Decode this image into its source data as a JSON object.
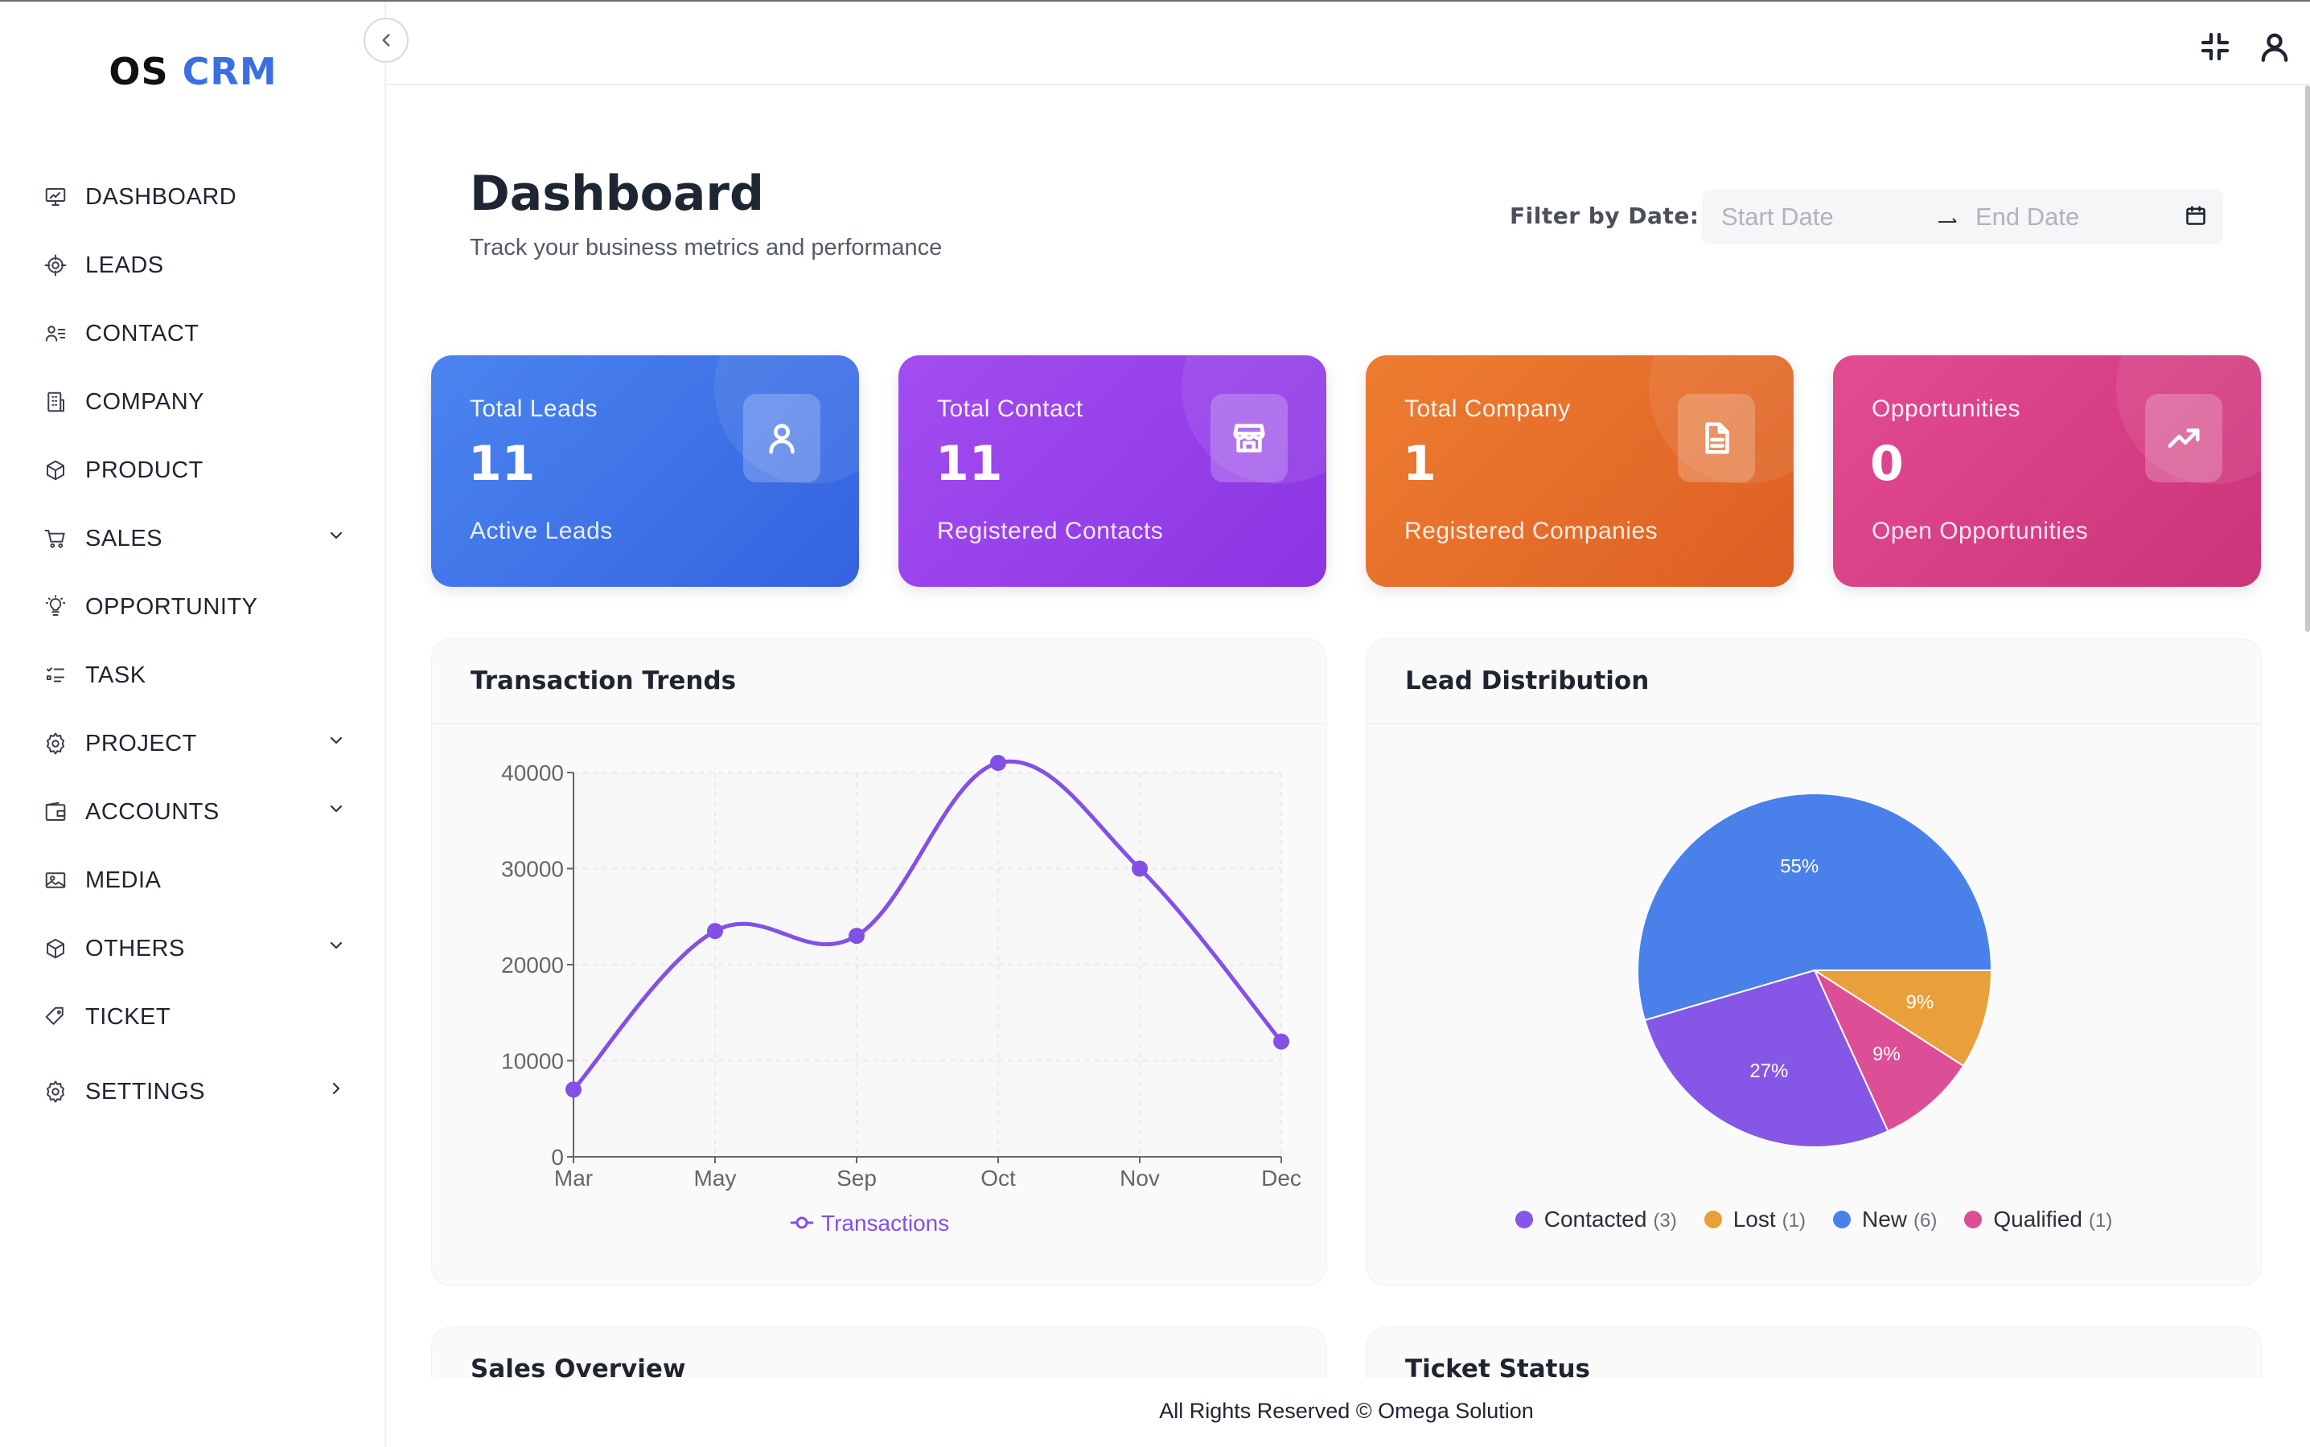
{
  "app": {
    "logo_prefix": "OS",
    "logo_suffix": "CRM"
  },
  "sidebar": {
    "items": [
      {
        "label": "DASHBOARD",
        "icon": "presentation-chart-icon",
        "has_submenu": false
      },
      {
        "label": "LEADS",
        "icon": "target-icon",
        "has_submenu": false
      },
      {
        "label": "CONTACT",
        "icon": "contact-list-icon",
        "has_submenu": false
      },
      {
        "label": "COMPANY",
        "icon": "building-icon",
        "has_submenu": false
      },
      {
        "label": "PRODUCT",
        "icon": "box-icon",
        "has_submenu": false
      },
      {
        "label": "SALES",
        "icon": "cart-icon",
        "has_submenu": true,
        "chevron": "down"
      },
      {
        "label": "OPPORTUNITY",
        "icon": "lightbulb-icon",
        "has_submenu": false
      },
      {
        "label": "TASK",
        "icon": "checklist-icon",
        "has_submenu": false
      },
      {
        "label": "PROJECT",
        "icon": "gear-icon",
        "has_submenu": true,
        "chevron": "down"
      },
      {
        "label": "ACCOUNTS",
        "icon": "wallet-icon",
        "has_submenu": true,
        "chevron": "down"
      },
      {
        "label": "MEDIA",
        "icon": "image-icon",
        "has_submenu": false
      },
      {
        "label": "OTHERS",
        "icon": "box-icon",
        "has_submenu": true,
        "chevron": "down"
      },
      {
        "label": "TICKET",
        "icon": "tag-icon",
        "has_submenu": false
      },
      {
        "label": "SETTINGS",
        "icon": "gear-icon",
        "has_submenu": true,
        "chevron": "right"
      }
    ]
  },
  "header": {
    "title": "Dashboard",
    "subtitle": "Track your business metrics and performance",
    "filter_label": "Filter by Date:",
    "start_placeholder": "Start Date",
    "end_placeholder": "End Date"
  },
  "stats": [
    {
      "title": "Total Leads",
      "value": "11",
      "subtitle": "Active Leads",
      "icon": "user-icon",
      "color": "#3f73e8"
    },
    {
      "title": "Total Contact",
      "value": "11",
      "subtitle": "Registered Contacts",
      "icon": "store-icon",
      "color": "#9641ea"
    },
    {
      "title": "Total Company",
      "value": "1",
      "subtitle": "Registered Companies",
      "icon": "document-icon",
      "color": "#e66c2a"
    },
    {
      "title": "Opportunities",
      "value": "0",
      "subtitle": "Open Opportunities",
      "icon": "trend-up-icon",
      "color": "#d83f85"
    }
  ],
  "panels": {
    "transaction_title": "Transaction Trends",
    "lead_title": "Lead Distribution",
    "sales_title": "Sales Overview",
    "ticket_title": "Ticket Status"
  },
  "chart_data": [
    {
      "type": "line",
      "title": "Transaction Trends",
      "x": [
        "Mar",
        "May",
        "Sep",
        "Oct",
        "Nov",
        "Dec"
      ],
      "series": [
        {
          "name": "Transactions",
          "values": [
            7000,
            23500,
            23000,
            41000,
            30000,
            12000
          ],
          "color": "#8250e6"
        }
      ],
      "ylim": [
        0,
        40000
      ],
      "yticks": [
        0,
        10000,
        20000,
        30000,
        40000
      ],
      "grid": true,
      "legend": "bottom"
    },
    {
      "type": "pie",
      "title": "Lead Distribution",
      "slices": [
        {
          "label": "New",
          "value": 6,
          "percent": "55%",
          "color": "#4a80ea"
        },
        {
          "label": "Lost",
          "value": 1,
          "percent": "9%",
          "color": "#e9a03b"
        },
        {
          "label": "Qualified",
          "value": 1,
          "percent": "9%",
          "color": "#dc4f96"
        },
        {
          "label": "Contacted",
          "value": 3,
          "percent": "27%",
          "color": "#8657e6"
        }
      ],
      "legend_order": [
        "Contacted",
        "Lost",
        "New",
        "Qualified"
      ],
      "legend": "bottom"
    }
  ],
  "footer": {
    "text": "All Rights Reserved © Omega Solution"
  }
}
